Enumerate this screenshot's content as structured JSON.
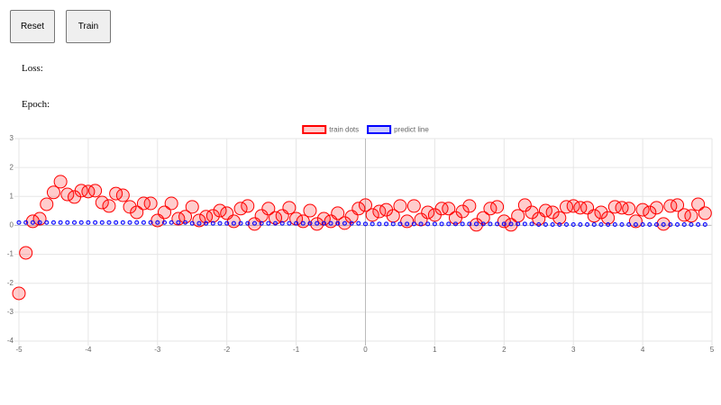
{
  "buttons": {
    "reset": "Reset",
    "train": "Train"
  },
  "labels": {
    "loss": "Loss:",
    "epoch": "Epoch:"
  },
  "chart_data": {
    "type": "scatter",
    "x": [
      -5,
      -4.9,
      -4.8,
      -4.7,
      -4.6,
      -4.5,
      -4.4,
      -4.3,
      -4.2,
      -4.1,
      -4,
      -3.9,
      -3.8,
      -3.7,
      -3.6,
      -3.5,
      -3.4,
      -3.3,
      -3.2,
      -3.1,
      -3,
      -2.9,
      -2.8,
      -2.7,
      -2.6,
      -2.5,
      -2.4,
      -2.3,
      -2.2,
      -2.1,
      -2,
      -1.9,
      -1.8,
      -1.7,
      -1.6,
      -1.5,
      -1.4,
      -1.3,
      -1.2,
      -1.1,
      -1,
      -0.9,
      -0.8,
      -0.7,
      -0.6,
      -0.5,
      -0.4,
      -0.3,
      -0.2,
      -0.1,
      0,
      0.1,
      0.2,
      0.3,
      0.4,
      0.5,
      0.6,
      0.7,
      0.8,
      0.9,
      1,
      1.1,
      1.2,
      1.3,
      1.4,
      1.5,
      1.6,
      1.7,
      1.8,
      1.9,
      2,
      2.1,
      2.2,
      2.3,
      2.4,
      2.5,
      2.6,
      2.7,
      2.8,
      2.9,
      3,
      3.1,
      3.2,
      3.3,
      3.4,
      3.5,
      3.6,
      3.7,
      3.8,
      3.9,
      4,
      4.1,
      4.2,
      4.3,
      4.4,
      4.5,
      4.6,
      4.7,
      4.8,
      4.9
    ],
    "series": [
      {
        "name": "train dots",
        "color": "#ff0000",
        "values": [
          -2.35,
          -0.95,
          0.14,
          0.23,
          0.73,
          1.14,
          1.51,
          1.07,
          0.98,
          1.2,
          1.17,
          1.2,
          0.79,
          0.67,
          1.1,
          1.04,
          0.64,
          0.45,
          0.76,
          0.76,
          0.17,
          0.45,
          0.76,
          0.23,
          0.3,
          0.64,
          0.17,
          0.3,
          0.33,
          0.51,
          0.42,
          0.14,
          0.58,
          0.67,
          0.05,
          0.33,
          0.58,
          0.26,
          0.33,
          0.61,
          0.23,
          0.14,
          0.51,
          0.05,
          0.23,
          0.14,
          0.42,
          0.08,
          0.3,
          0.58,
          0.7,
          0.36,
          0.48,
          0.54,
          0.33,
          0.67,
          0.14,
          0.67,
          0.2,
          0.45,
          0.36,
          0.58,
          0.58,
          0.26,
          0.48,
          0.67,
          0.02,
          0.26,
          0.58,
          0.64,
          0.14,
          0.02,
          0.33,
          0.7,
          0.45,
          0.23,
          0.51,
          0.45,
          0.26,
          0.64,
          0.67,
          0.61,
          0.61,
          0.33,
          0.45,
          0.26,
          0.64,
          0.61,
          0.58,
          0.14,
          0.54,
          0.45,
          0.61,
          0.05,
          0.67,
          0.7,
          0.36,
          0.33,
          0.73,
          0.42
        ]
      },
      {
        "name": "predict line",
        "color": "#0000ff",
        "values": [
          0.1,
          0.1,
          0.1,
          0.1,
          0.1,
          0.1,
          0.1,
          0.1,
          0.1,
          0.1,
          0.1,
          0.1,
          0.1,
          0.1,
          0.1,
          0.1,
          0.1,
          0.1,
          0.1,
          0.1,
          0.1,
          0.1,
          0.1,
          0.1,
          0.1,
          0.07,
          0.07,
          0.07,
          0.07,
          0.07,
          0.07,
          0.07,
          0.07,
          0.07,
          0.07,
          0.07,
          0.07,
          0.07,
          0.07,
          0.07,
          0.07,
          0.07,
          0.07,
          0.07,
          0.07,
          0.07,
          0.07,
          0.07,
          0.07,
          0.07,
          0.05,
          0.05,
          0.05,
          0.05,
          0.05,
          0.05,
          0.05,
          0.05,
          0.05,
          0.05,
          0.05,
          0.05,
          0.05,
          0.05,
          0.05,
          0.05,
          0.05,
          0.05,
          0.05,
          0.05,
          0.05,
          0.05,
          0.05,
          0.05,
          0.05,
          0.03,
          0.03,
          0.03,
          0.03,
          0.03,
          0.03,
          0.03,
          0.03,
          0.03,
          0.03,
          0.03,
          0.03,
          0.03,
          0.03,
          0.03,
          0.03,
          0.03,
          0.03,
          0.03,
          0.03,
          0.03,
          0.03,
          0.03,
          0.03,
          0.03
        ]
      }
    ],
    "xlim": [
      -5,
      5
    ],
    "xticks": [
      -5,
      -4,
      -3,
      -2,
      -1,
      0,
      1,
      2,
      3,
      4,
      5
    ],
    "ylim": [
      -4,
      3
    ],
    "yticks": [
      -4,
      -3,
      -2,
      -1,
      0,
      1,
      2,
      3
    ],
    "grid": true,
    "legend": "top"
  }
}
